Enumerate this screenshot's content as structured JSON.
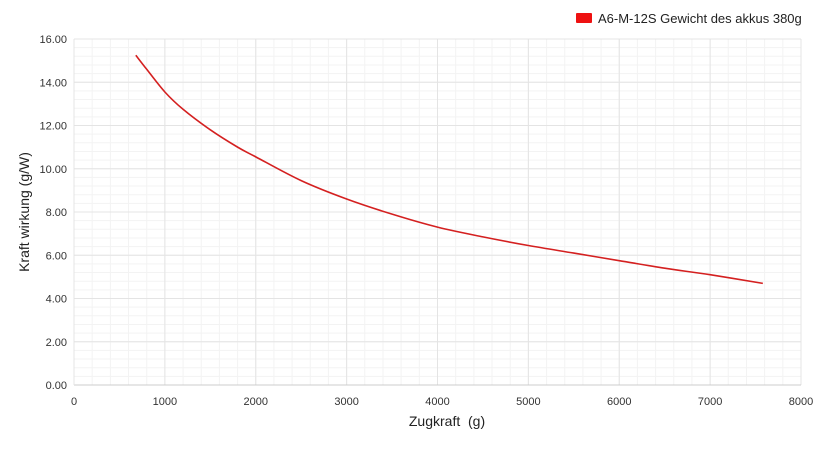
{
  "chart_data": {
    "type": "line",
    "title": "",
    "xlabel": "Zugkraft  (g)",
    "ylabel": "Kraft wirkung (g/W)",
    "xlim": [
      0,
      8000
    ],
    "ylim": [
      0,
      16
    ],
    "x_ticks": [
      "0",
      "1000",
      "2000",
      "3000",
      "4000",
      "5000",
      "6000",
      "7000",
      "8000"
    ],
    "y_ticks": [
      "0.00",
      "2.00",
      "4.00",
      "6.00",
      "8.00",
      "10.00",
      "12.00",
      "14.00",
      "16.00"
    ],
    "grid": true,
    "legend_position": "top-right",
    "series": [
      {
        "name": "A6-M-12S Gewicht des akkus 380g",
        "color": "#d42020",
        "x": [
          680,
          800,
          1000,
          1200,
          1500,
          1800,
          2000,
          2500,
          3000,
          3500,
          4000,
          4500,
          5000,
          5500,
          6000,
          6500,
          7000,
          7580
        ],
        "y": [
          15.25,
          14.6,
          13.55,
          12.75,
          11.8,
          11.0,
          10.55,
          9.45,
          8.6,
          7.9,
          7.3,
          6.85,
          6.45,
          6.1,
          5.75,
          5.4,
          5.1,
          4.7
        ]
      }
    ]
  }
}
